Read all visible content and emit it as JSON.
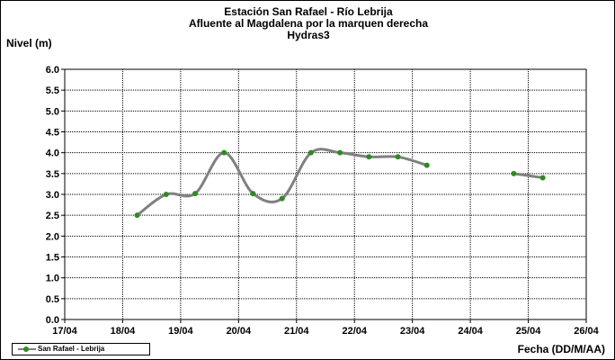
{
  "chart_data": {
    "type": "line",
    "title_lines": [
      "Estación San Rafael - Río Lebrija",
      "Afluente al Magdalena por la marquen derecha",
      "Hydras3"
    ],
    "ylabel": "Nivel (m)",
    "xlabel": "Fecha (DD/M/AA)",
    "ylim": [
      0,
      6
    ],
    "y_ticks": [
      "0.0",
      "0.5",
      "1.0",
      "1.5",
      "2.0",
      "2.5",
      "3.0",
      "3.5",
      "4.0",
      "4.5",
      "5.0",
      "5.5",
      "6.0"
    ],
    "x_ticks": [
      "17/04",
      "18/04",
      "19/04",
      "20/04",
      "21/04",
      "22/04",
      "23/04",
      "24/04",
      "25/04",
      "26/04"
    ],
    "grid": true,
    "legend_position": "bottom-left",
    "series": [
      {
        "name": "San Rafael - Lebrija",
        "line_color": "#808080",
        "marker_color": "#2e8b22",
        "segments": [
          [
            {
              "x": "18/04 06:00",
              "y": 2.5
            },
            {
              "x": "18/04 18:00",
              "y": 3.0
            },
            {
              "x": "19/04 06:00",
              "y": 3.02
            },
            {
              "x": "19/04 18:00",
              "y": 4.0
            },
            {
              "x": "20/04 06:00",
              "y": 3.02
            },
            {
              "x": "20/04 18:00",
              "y": 2.9
            },
            {
              "x": "21/04 06:00",
              "y": 4.0
            },
            {
              "x": "21/04 18:00",
              "y": 4.0
            },
            {
              "x": "22/04 06:00",
              "y": 3.9
            },
            {
              "x": "22/04 18:00",
              "y": 3.9
            },
            {
              "x": "23/04 06:00",
              "y": 3.7
            }
          ],
          [
            {
              "x": "24/04 18:00",
              "y": 3.5
            },
            {
              "x": "25/04 06:00",
              "y": 3.4
            }
          ]
        ]
      }
    ]
  }
}
